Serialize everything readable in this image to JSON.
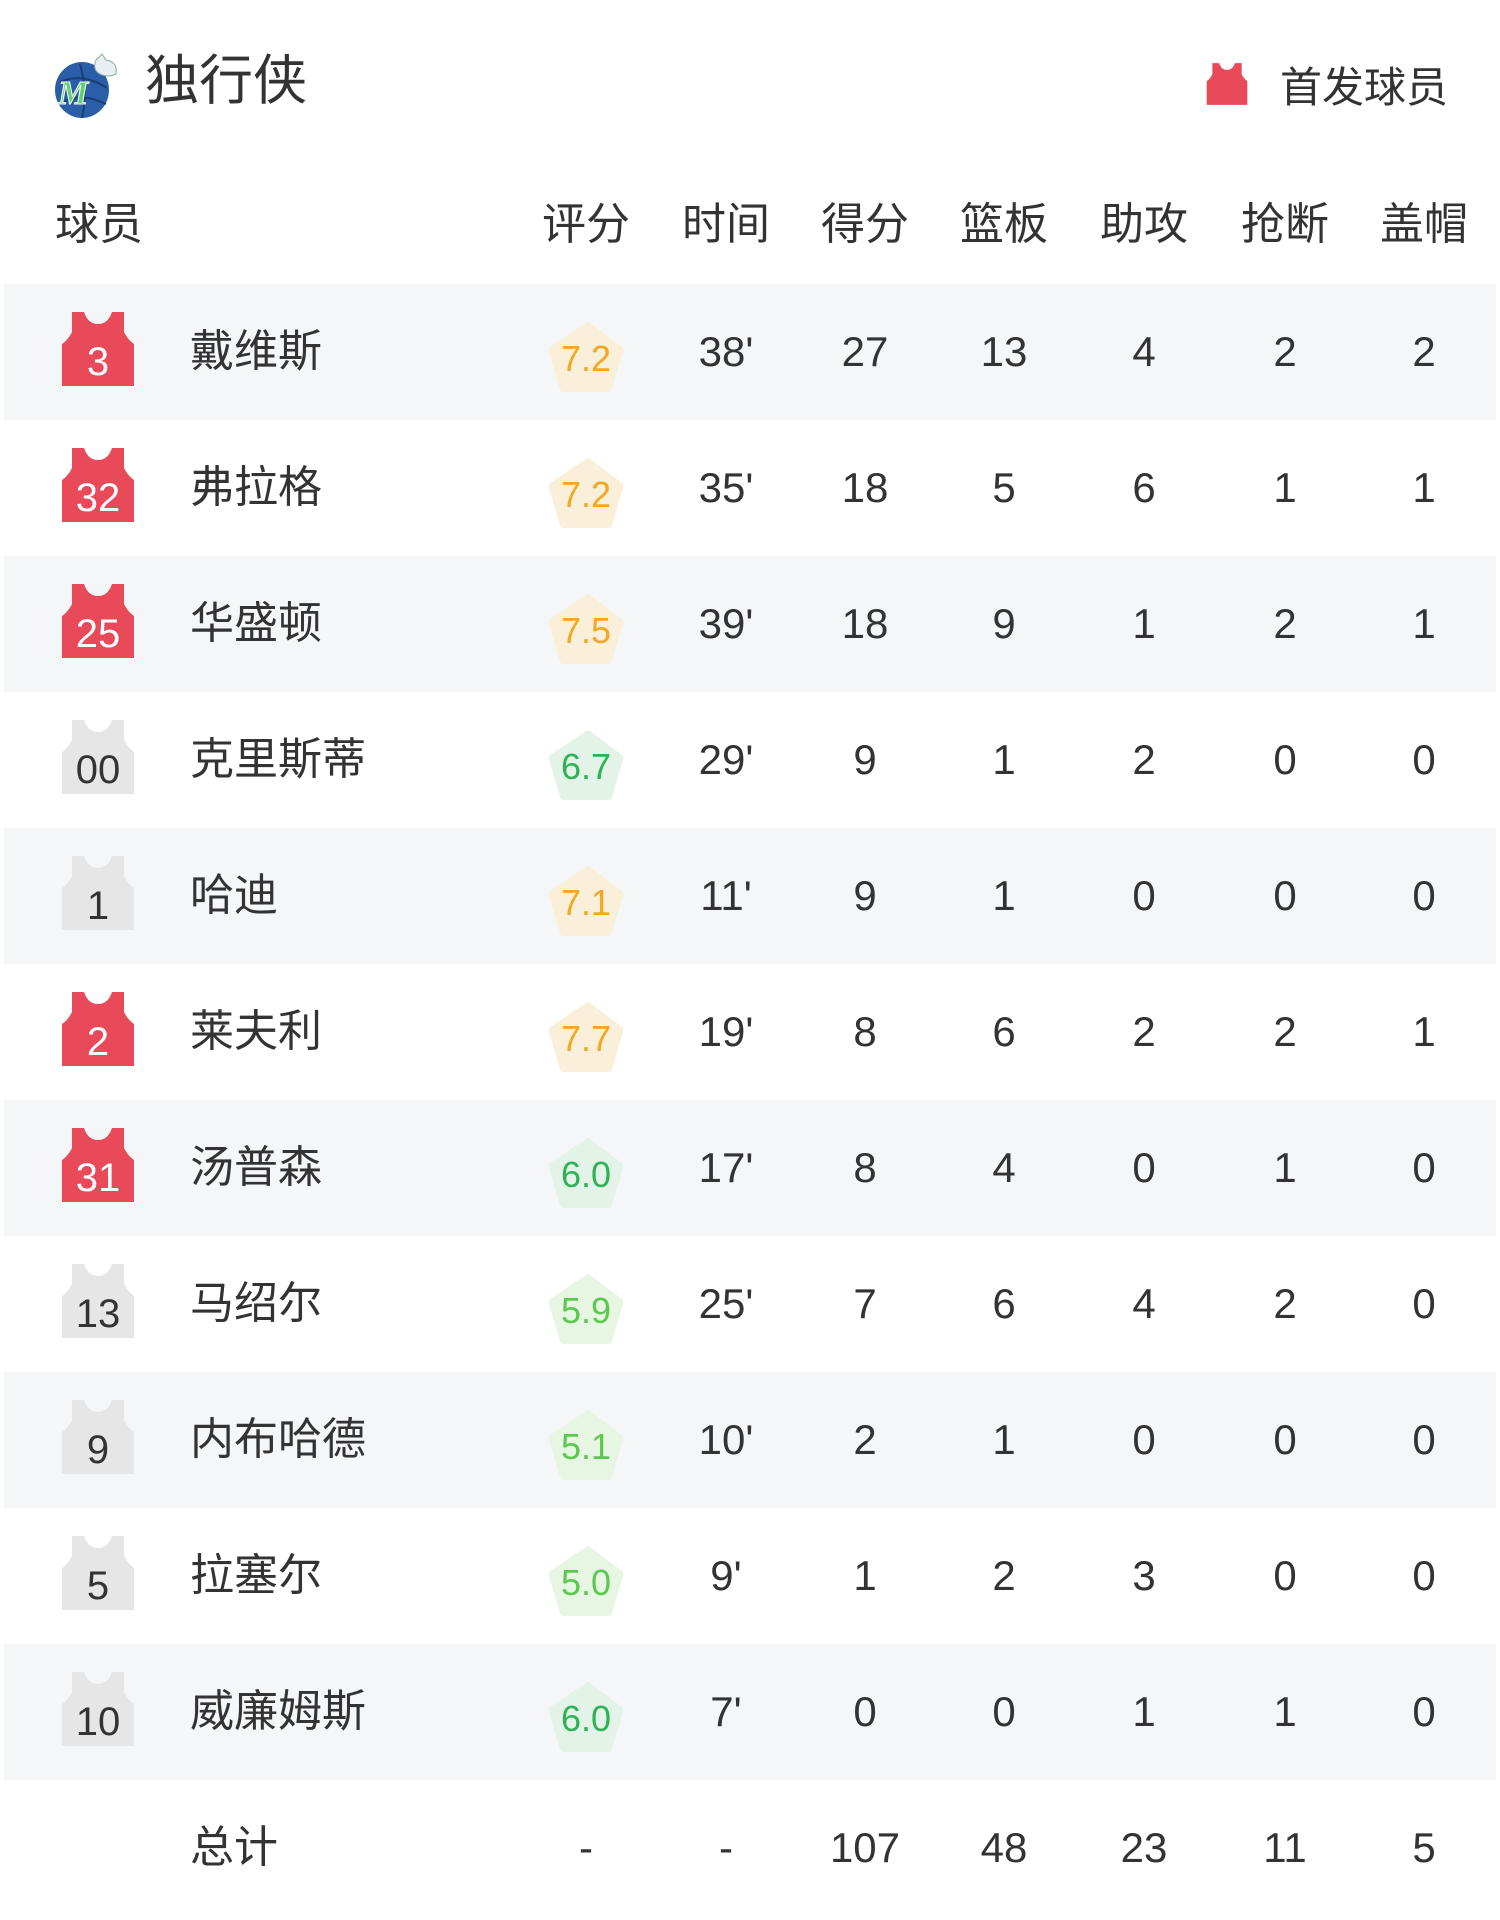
{
  "team": {
    "name": "独行侠",
    "logo": "mavericks-logo"
  },
  "legend": {
    "label": "首发球员",
    "icon": "jersey-icon",
    "starter_color": "#e84a5a",
    "bench_color": "#e6e6e6"
  },
  "columns": [
    "球员",
    "评分",
    "时间",
    "得分",
    "篮板",
    "助攻",
    "抢断",
    "盖帽"
  ],
  "rating_colors": {
    "high_text": "#f5a623",
    "high_bg": "#faefd8",
    "mid_text": "#2fb257",
    "mid_bg": "#e4f3e8",
    "low_text": "#5cc84f",
    "low_bg": "#e6f6e3"
  },
  "players": [
    {
      "number": "3",
      "name": "戴维斯",
      "starter": true,
      "rating": "7.2",
      "time": "38'",
      "pts": "27",
      "reb": "13",
      "ast": "4",
      "stl": "2",
      "blk": "2"
    },
    {
      "number": "32",
      "name": "弗拉格",
      "starter": true,
      "rating": "7.2",
      "time": "35'",
      "pts": "18",
      "reb": "5",
      "ast": "6",
      "stl": "1",
      "blk": "1"
    },
    {
      "number": "25",
      "name": "华盛顿",
      "starter": true,
      "rating": "7.5",
      "time": "39'",
      "pts": "18",
      "reb": "9",
      "ast": "1",
      "stl": "2",
      "blk": "1"
    },
    {
      "number": "00",
      "name": "克里斯蒂",
      "starter": false,
      "rating": "6.7",
      "time": "29'",
      "pts": "9",
      "reb": "1",
      "ast": "2",
      "stl": "0",
      "blk": "0"
    },
    {
      "number": "1",
      "name": "哈迪",
      "starter": false,
      "rating": "7.1",
      "time": "11'",
      "pts": "9",
      "reb": "1",
      "ast": "0",
      "stl": "0",
      "blk": "0"
    },
    {
      "number": "2",
      "name": "莱夫利",
      "starter": true,
      "rating": "7.7",
      "time": "19'",
      "pts": "8",
      "reb": "6",
      "ast": "2",
      "stl": "2",
      "blk": "1"
    },
    {
      "number": "31",
      "name": "汤普森",
      "starter": true,
      "rating": "6.0",
      "time": "17'",
      "pts": "8",
      "reb": "4",
      "ast": "0",
      "stl": "1",
      "blk": "0"
    },
    {
      "number": "13",
      "name": "马绍尔",
      "starter": false,
      "rating": "5.9",
      "time": "25'",
      "pts": "7",
      "reb": "6",
      "ast": "4",
      "stl": "2",
      "blk": "0"
    },
    {
      "number": "9",
      "name": "内布哈德",
      "starter": false,
      "rating": "5.1",
      "time": "10'",
      "pts": "2",
      "reb": "1",
      "ast": "0",
      "stl": "0",
      "blk": "0"
    },
    {
      "number": "5",
      "name": "拉塞尔",
      "starter": false,
      "rating": "5.0",
      "time": "9'",
      "pts": "1",
      "reb": "2",
      "ast": "3",
      "stl": "0",
      "blk": "0"
    },
    {
      "number": "10",
      "name": "威廉姆斯",
      "starter": false,
      "rating": "6.0",
      "time": "7'",
      "pts": "0",
      "reb": "0",
      "ast": "1",
      "stl": "1",
      "blk": "0"
    }
  ],
  "totals": {
    "label": "总计",
    "rating": "-",
    "time": "-",
    "pts": "107",
    "reb": "48",
    "ast": "23",
    "stl": "11",
    "blk": "5"
  }
}
